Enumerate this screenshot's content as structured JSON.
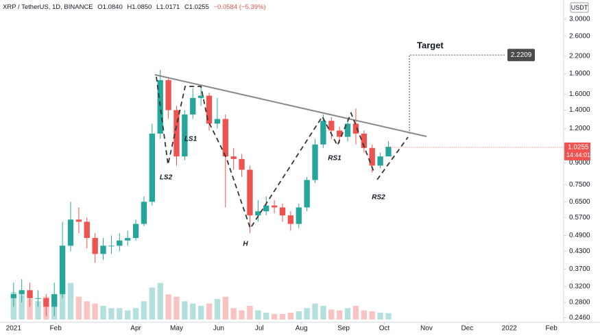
{
  "chart_data": {
    "type": "candlestick",
    "header": {
      "symbol": "XRP / TetherUS, 1D, BINANCE",
      "ohlc": [
        "O1.0840",
        "H1.0850",
        "L1.0171",
        "C1.0255"
      ],
      "change": "−0.0584 (−5.39%)"
    },
    "currency": "USDT",
    "x": [
      0,
      6,
      12,
      18,
      24,
      30,
      36,
      42,
      48,
      54,
      60,
      66,
      72,
      78,
      84,
      90,
      96,
      102,
      108,
      114,
      120,
      126,
      132,
      138,
      144,
      150,
      156,
      162,
      168,
      174,
      180,
      186,
      192,
      198,
      204,
      210,
      216,
      222,
      228,
      234,
      240,
      246,
      252,
      258,
      264,
      270,
      276
    ],
    "open": [
      0.29,
      0.3,
      0.31,
      0.29,
      0.29,
      0.27,
      0.3,
      0.45,
      0.56,
      0.55,
      0.48,
      0.42,
      0.45,
      0.45,
      0.47,
      0.48,
      0.54,
      0.65,
      1.15,
      1.8,
      1.4,
      0.95,
      1.35,
      1.55,
      1.58,
      1.25,
      1.3,
      0.95,
      0.93,
      0.85,
      0.58,
      0.6,
      0.63,
      0.62,
      0.58,
      0.54,
      0.62,
      0.78,
      1.05,
      1.28,
      1.18,
      1.12,
      1.25,
      1.15,
      1.02,
      0.88,
      0.95
    ],
    "high": [
      0.33,
      0.34,
      0.33,
      0.31,
      0.3,
      0.33,
      0.55,
      0.65,
      0.62,
      0.57,
      0.5,
      0.48,
      0.49,
      0.5,
      0.51,
      0.56,
      0.68,
      1.25,
      1.96,
      1.85,
      1.45,
      1.4,
      1.68,
      1.72,
      1.62,
      1.55,
      1.35,
      1.02,
      0.97,
      0.88,
      0.66,
      0.68,
      0.66,
      0.64,
      0.6,
      0.64,
      0.8,
      1.1,
      1.35,
      1.32,
      1.22,
      1.3,
      1.42,
      1.18,
      1.05,
      0.98,
      1.08
    ],
    "low": [
      0.27,
      0.28,
      0.27,
      0.27,
      0.25,
      0.25,
      0.29,
      0.43,
      0.5,
      0.44,
      0.39,
      0.4,
      0.42,
      0.43,
      0.45,
      0.47,
      0.53,
      0.63,
      1.1,
      1.3,
      0.88,
      0.92,
      1.3,
      1.45,
      1.18,
      1.2,
      0.62,
      0.85,
      0.8,
      0.5,
      0.55,
      0.58,
      0.59,
      0.55,
      0.51,
      0.52,
      0.6,
      0.76,
      1.02,
      1.1,
      1.06,
      1.08,
      1.05,
      0.98,
      0.83,
      0.86,
      0.97
    ],
    "close": [
      0.3,
      0.31,
      0.29,
      0.29,
      0.27,
      0.3,
      0.45,
      0.56,
      0.55,
      0.48,
      0.42,
      0.45,
      0.45,
      0.47,
      0.48,
      0.54,
      0.65,
      1.15,
      1.8,
      1.4,
      0.95,
      1.35,
      1.55,
      1.58,
      1.25,
      1.3,
      0.95,
      0.93,
      0.85,
      0.58,
      0.6,
      0.63,
      0.62,
      0.58,
      0.54,
      0.62,
      0.78,
      1.05,
      1.28,
      1.18,
      1.12,
      1.25,
      1.15,
      1.02,
      0.88,
      0.95,
      1.03
    ],
    "volume": [
      60,
      55,
      45,
      40,
      50,
      45,
      90,
      80,
      50,
      40,
      35,
      30,
      25,
      25,
      20,
      25,
      40,
      70,
      80,
      55,
      50,
      40,
      35,
      30,
      35,
      45,
      50,
      25,
      20,
      30,
      20,
      15,
      12,
      12,
      15,
      18,
      25,
      35,
      30,
      22,
      20,
      25,
      30,
      20,
      18,
      15,
      14
    ],
    "up_color": "#26a69a",
    "down_color": "#ef5350",
    "log_scale": true,
    "grid": false,
    "xlim": [
      -10,
      404
    ],
    "xticks": [
      {
        "value": 0,
        "label": "2021"
      },
      {
        "value": 31,
        "label": "Feb"
      },
      {
        "value": 90,
        "label": "Apr"
      },
      {
        "value": 120,
        "label": "May"
      },
      {
        "value": 151,
        "label": "Jun"
      },
      {
        "value": 181,
        "label": "Jul"
      },
      {
        "value": 212,
        "label": "Aug"
      },
      {
        "value": 243,
        "label": "Sep"
      },
      {
        "value": 273,
        "label": "Oct"
      },
      {
        "value": 304,
        "label": "Nov"
      },
      {
        "value": 334,
        "label": "Dec"
      },
      {
        "value": 365,
        "label": "2022"
      },
      {
        "value": 396,
        "label": "Feb"
      }
    ],
    "ylim": [
      0.237,
      3.52
    ],
    "yticks": [
      {
        "value": 3.0,
        "label": "3.0000"
      },
      {
        "value": 2.6,
        "label": "2.6000"
      },
      {
        "value": 2.2,
        "label": "2.2000"
      },
      {
        "value": 1.9,
        "label": "1.9000"
      },
      {
        "value": 1.6,
        "label": "1.6000"
      },
      {
        "value": 1.4,
        "label": "1.4000"
      },
      {
        "value": 1.2,
        "label": "1.2000"
      },
      {
        "value": 0.9,
        "label": "0.9000"
      },
      {
        "value": 0.75,
        "label": "0.7500"
      },
      {
        "value": 0.65,
        "label": "0.6500"
      },
      {
        "value": 0.57,
        "label": "0.5700"
      },
      {
        "value": 0.49,
        "label": "0.4900"
      },
      {
        "value": 0.43,
        "label": "0.4300"
      },
      {
        "value": 0.37,
        "label": "0.3700"
      },
      {
        "value": 0.32,
        "label": "0.3200"
      },
      {
        "value": 0.28,
        "label": "0.2800"
      },
      {
        "value": 0.246,
        "label": "0.2460"
      }
    ],
    "last_price": {
      "value": 1.0255,
      "label": "1.0255",
      "timer": "14:44:01"
    },
    "target": {
      "title": "Target",
      "value": 2.2209,
      "label": "2.2209"
    },
    "annotations": [
      "LS2",
      "LS1",
      "H",
      "RS1",
      "RS2"
    ]
  }
}
